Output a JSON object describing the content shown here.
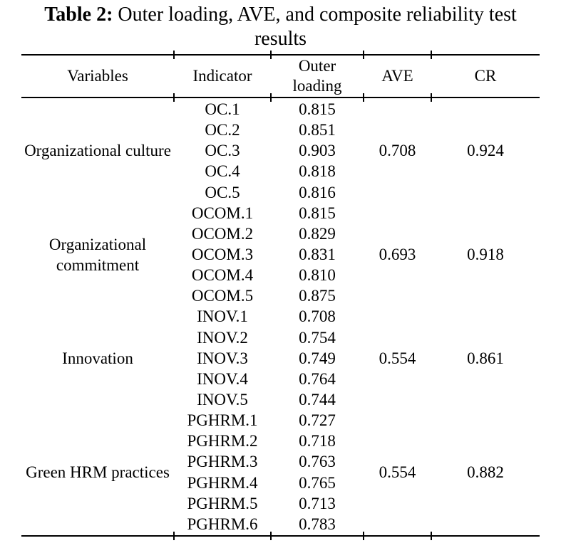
{
  "title": {
    "prefix": "Table 2:",
    "line1_rest": " Outer loading, AVE, and composite reliability test",
    "line2": "results"
  },
  "columns": [
    "Variables",
    "Indicator",
    "Outer loading",
    "AVE",
    "CR"
  ],
  "groups": [
    {
      "variable": "Organizational culture",
      "ave": "0.708",
      "cr": "0.924",
      "indicators": [
        {
          "name": "OC.1",
          "loading": "0.815"
        },
        {
          "name": "OC.2",
          "loading": "0.851"
        },
        {
          "name": "OC.3",
          "loading": "0.903"
        },
        {
          "name": "OC.4",
          "loading": "0.818"
        },
        {
          "name": "OC.5",
          "loading": "0.816"
        }
      ]
    },
    {
      "variable": "Organizational commitment",
      "ave": "0.693",
      "cr": "0.918",
      "indicators": [
        {
          "name": "OCOM.1",
          "loading": "0.815"
        },
        {
          "name": "OCOM.2",
          "loading": "0.829"
        },
        {
          "name": "OCOM.3",
          "loading": "0.831"
        },
        {
          "name": "OCOM.4",
          "loading": "0.810"
        },
        {
          "name": "OCOM.5",
          "loading": "0.875"
        }
      ]
    },
    {
      "variable": "Innovation",
      "ave": "0.554",
      "cr": "0.861",
      "indicators": [
        {
          "name": "INOV.1",
          "loading": "0.708"
        },
        {
          "name": "INOV.2",
          "loading": "0.754"
        },
        {
          "name": "INOV.3",
          "loading": "0.749"
        },
        {
          "name": "INOV.4",
          "loading": "0.764"
        },
        {
          "name": "INOV.5",
          "loading": "0.744"
        }
      ]
    },
    {
      "variable": "Green HRM practices",
      "ave": "0.554",
      "cr": "0.882",
      "indicators": [
        {
          "name": "PGHRM.1",
          "loading": "0.727"
        },
        {
          "name": "PGHRM.2",
          "loading": "0.718"
        },
        {
          "name": "PGHRM.3",
          "loading": "0.763"
        },
        {
          "name": "PGHRM.4",
          "loading": "0.765"
        },
        {
          "name": "PGHRM.5",
          "loading": "0.713"
        },
        {
          "name": "PGHRM.6",
          "loading": "0.783"
        }
      ]
    }
  ],
  "text_color": "#000000",
  "background_color": "#ffffff"
}
